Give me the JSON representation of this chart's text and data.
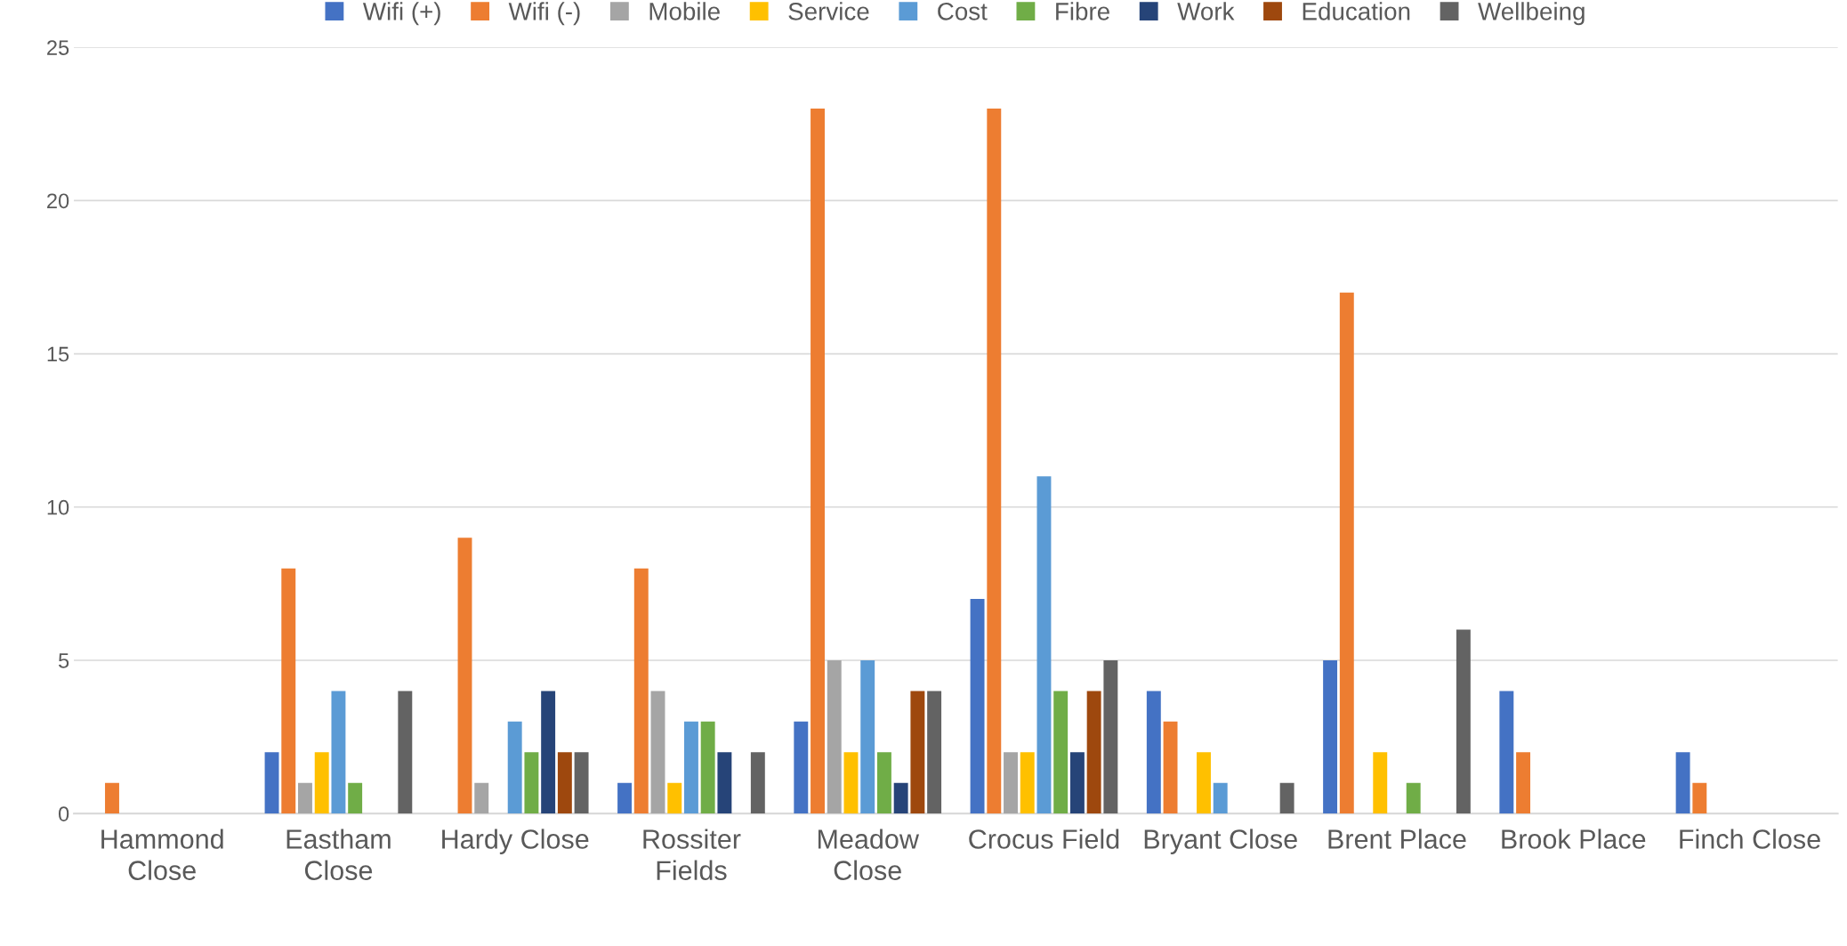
{
  "chart_data": {
    "type": "bar",
    "categories": [
      "Hammond Close",
      "Eastham Close",
      "Hardy Close",
      "Rossiter Fields",
      "Meadow Close",
      "Crocus Field",
      "Bryant Close",
      "Brent Place",
      "Brook Place",
      "Finch Close"
    ],
    "series": [
      {
        "name": "Wifi (+)",
        "color": "#4472c4",
        "values": [
          null,
          2,
          null,
          1,
          3,
          7,
          4,
          5,
          4,
          2
        ]
      },
      {
        "name": "Wifi (-)",
        "color": "#ed7d31",
        "values": [
          1,
          8,
          9,
          8,
          23,
          23,
          3,
          17,
          2,
          1
        ]
      },
      {
        "name": "Mobile",
        "color": "#a5a5a5",
        "values": [
          null,
          1,
          1,
          4,
          5,
          2,
          null,
          null,
          null,
          null
        ]
      },
      {
        "name": "Service",
        "color": "#ffc000",
        "values": [
          null,
          2,
          null,
          1,
          2,
          2,
          2,
          2,
          null,
          null
        ]
      },
      {
        "name": "Cost",
        "color": "#5b9bd5",
        "values": [
          null,
          4,
          3,
          3,
          5,
          11,
          1,
          null,
          null,
          null
        ]
      },
      {
        "name": "Fibre",
        "color": "#70ad47",
        "values": [
          null,
          1,
          2,
          3,
          2,
          4,
          null,
          1,
          null,
          null
        ]
      },
      {
        "name": "Work",
        "color": "#264478",
        "values": [
          null,
          null,
          4,
          2,
          1,
          2,
          null,
          null,
          null,
          null
        ]
      },
      {
        "name": "Education",
        "color": "#9e480e",
        "values": [
          null,
          null,
          2,
          null,
          4,
          4,
          null,
          null,
          null,
          null
        ]
      },
      {
        "name": "Wellbeing",
        "color": "#636363",
        "values": [
          null,
          4,
          2,
          2,
          4,
          5,
          1,
          6,
          null,
          null
        ]
      }
    ],
    "ylim": [
      0,
      25
    ],
    "yticks": [
      0,
      5,
      10,
      15,
      20,
      25
    ],
    "grid": "y",
    "legend": "top"
  }
}
